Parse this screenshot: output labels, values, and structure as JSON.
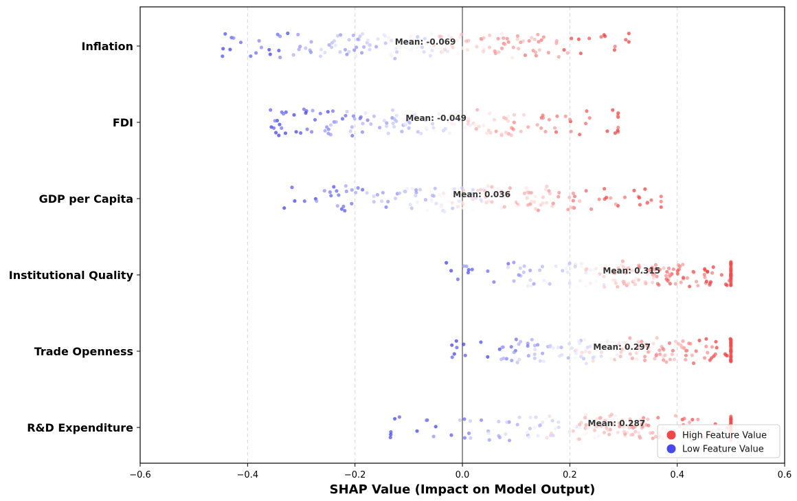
{
  "chart_data": {
    "type": "scatter",
    "title": "",
    "xlabel": "SHAP Value (Impact on Model Output)",
    "ylabel": "",
    "xlim": [
      -0.6,
      0.6
    ],
    "xticks": [
      -0.6,
      -0.4,
      -0.2,
      0.0,
      0.2,
      0.4,
      0.6
    ],
    "xtick_labels": [
      "−0.6",
      "−0.4",
      "−0.2",
      "0.0",
      "0.2",
      "0.4",
      "0.6"
    ],
    "grid": "vertical dashed",
    "zero_line": true,
    "legend_position": "bottom-right",
    "legend": [
      {
        "label": "High Feature Value",
        "color": "#f04848"
      },
      {
        "label": "Low Feature Value",
        "color": "#4848f0"
      }
    ],
    "features": [
      {
        "name": "Inflation",
        "mean": -0.069,
        "mean_label": "Mean: -0.069",
        "min": -0.45,
        "max": 0.31,
        "spread": 0.19,
        "tail": 0.11
      },
      {
        "name": "FDI",
        "mean": -0.049,
        "mean_label": "Mean: -0.049",
        "min": -0.36,
        "max": 0.29,
        "spread": 0.18,
        "tail": 0.1
      },
      {
        "name": "GDP per Capita",
        "mean": 0.036,
        "mean_label": "Mean: 0.036",
        "min": -0.35,
        "max": 0.37,
        "spread": 0.17,
        "tail": 0.1
      },
      {
        "name": "Institutional Quality",
        "mean": 0.315,
        "mean_label": "Mean: 0.315",
        "min": -0.05,
        "max": 0.5,
        "spread": 0.14,
        "tail": 0.12
      },
      {
        "name": "Trade Openness",
        "mean": 0.297,
        "mean_label": "Mean: 0.297",
        "min": -0.02,
        "max": 0.5,
        "spread": 0.14,
        "tail": 0.12
      },
      {
        "name": "R&D Expenditure",
        "mean": 0.287,
        "mean_label": "Mean: 0.287",
        "min": -0.14,
        "max": 0.5,
        "spread": 0.15,
        "tail": 0.12
      }
    ],
    "points_per_feature": 170,
    "color_low": "#3b3bf0",
    "color_high": "#f03b3b",
    "color_mid": "#ffffff"
  }
}
